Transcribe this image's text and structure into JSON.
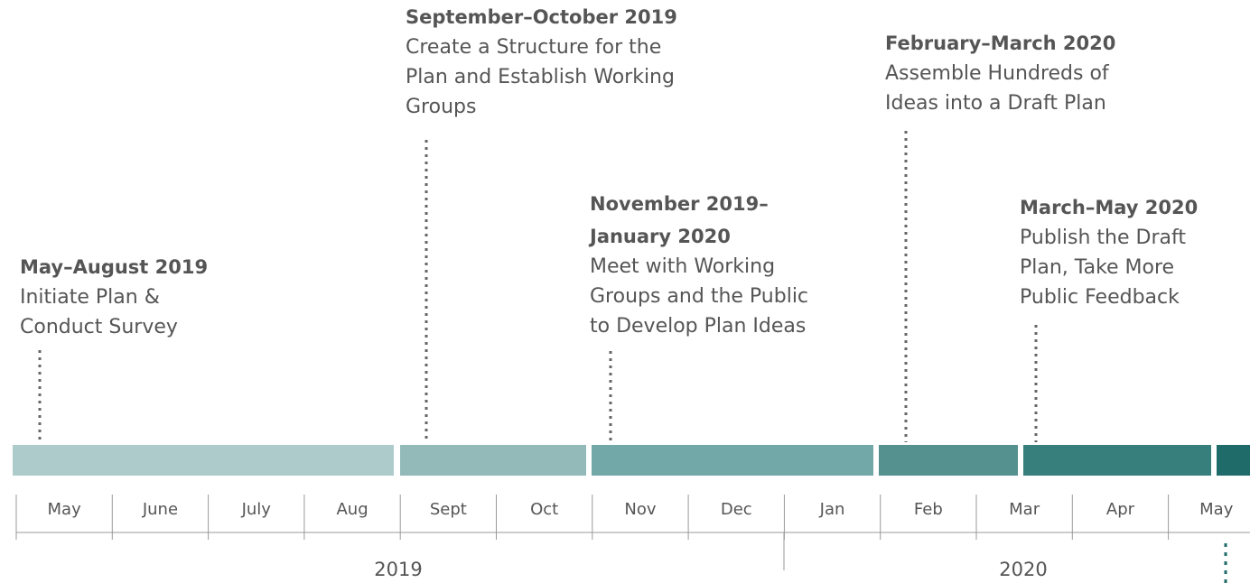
{
  "phases": [
    {
      "title": [
        "May–August 2019"
      ],
      "description": [
        "Initiate Plan &",
        "Conduct Survey"
      ]
    },
    {
      "title": [
        "September–October 2019"
      ],
      "description": [
        "Create a Structure for the",
        "Plan and Establish Working",
        "Groups"
      ]
    },
    {
      "title": [
        "November 2019–",
        "January 2020"
      ],
      "description": [
        "Meet with Working",
        "Groups and the Public",
        "to Develop Plan Ideas"
      ]
    },
    {
      "title": [
        "February–March 2020"
      ],
      "description": [
        "Assemble Hundreds of",
        "Ideas into a Draft Plan"
      ]
    },
    {
      "title": [
        "March–May 2020"
      ],
      "description": [
        "Publish the Draft",
        "Plan, Take More",
        "Public Feedback"
      ]
    }
  ],
  "segments": [
    {
      "color": "#aecbcb"
    },
    {
      "color": "#93bab9"
    },
    {
      "color": "#72a8a7"
    },
    {
      "color": "#54918f"
    },
    {
      "color": "#367f7d"
    },
    {
      "color": "#1e6b69"
    }
  ],
  "months": [
    "May",
    "June",
    "July",
    "Aug",
    "Sept",
    "Oct",
    "Nov",
    "Dec",
    "Jan",
    "Feb",
    "Mar",
    "Apr",
    "May"
  ],
  "years": [
    "2019",
    "2020"
  ]
}
